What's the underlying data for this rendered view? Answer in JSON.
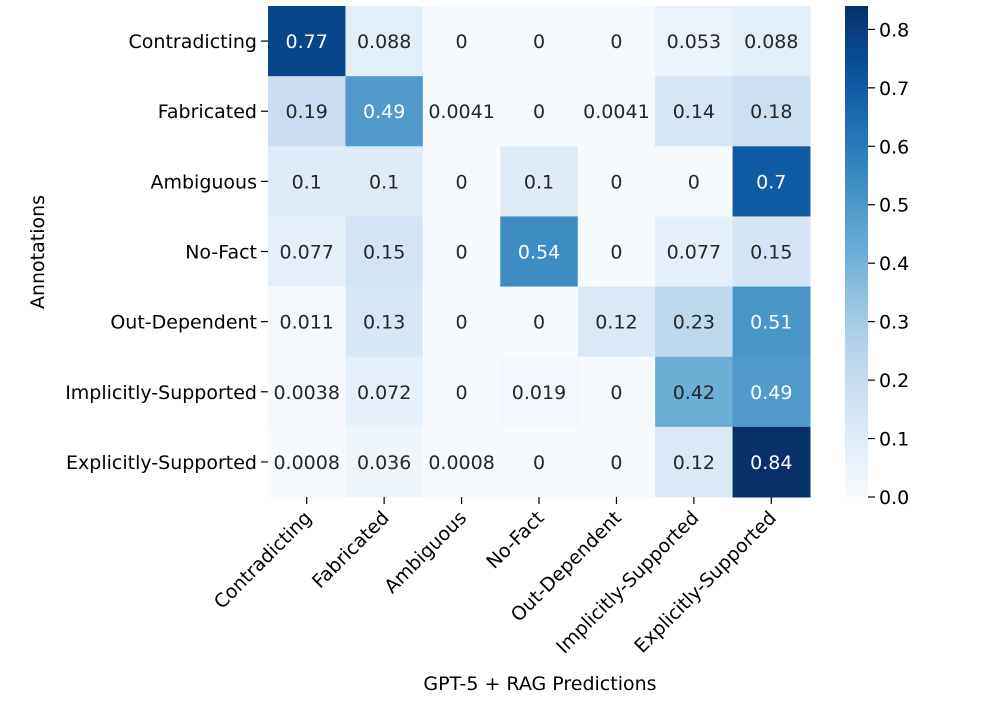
{
  "chart_data": {
    "type": "heatmap",
    "title": "",
    "xlabel": "GPT-5 + RAG Predictions",
    "ylabel": "Annotations",
    "x_categories": [
      "Contradicting",
      "Fabricated",
      "Ambiguous",
      "No-Fact",
      "Out-Dependent",
      "Implicitly-Supported",
      "Explicitly-Supported"
    ],
    "y_categories": [
      "Contradicting",
      "Fabricated",
      "Ambiguous",
      "No-Fact",
      "Out-Dependent",
      "Implicitly-Supported",
      "Explicitly-Supported"
    ],
    "value_labels": [
      [
        "0.77",
        "0.088",
        "0",
        "0",
        "0",
        "0.053",
        "0.088"
      ],
      [
        "0.19",
        "0.49",
        "0.0041",
        "0",
        "0.0041",
        "0.14",
        "0.18"
      ],
      [
        "0.1",
        "0.1",
        "0",
        "0.1",
        "0",
        "0",
        "0.7"
      ],
      [
        "0.077",
        "0.15",
        "0",
        "0.54",
        "0",
        "0.077",
        "0.15"
      ],
      [
        "0.011",
        "0.13",
        "0",
        "0",
        "0.12",
        "0.23",
        "0.51"
      ],
      [
        "0.0038",
        "0.072",
        "0",
        "0.019",
        "0",
        "0.42",
        "0.49"
      ],
      [
        "0.0008",
        "0.036",
        "0.0008",
        "0",
        "0",
        "0.12",
        "0.84"
      ]
    ],
    "colorbar": {
      "range": [
        0,
        0.84
      ],
      "ticks": [
        "0.0",
        "0.1",
        "0.2",
        "0.3",
        "0.4",
        "0.5",
        "0.6",
        "0.7",
        "0.8"
      ],
      "colormap": "Blues"
    },
    "colors": {
      "low": "#f7fbff",
      "high": "#08306b",
      "text_dark": "#262626",
      "text_light": "#ffffff"
    }
  }
}
